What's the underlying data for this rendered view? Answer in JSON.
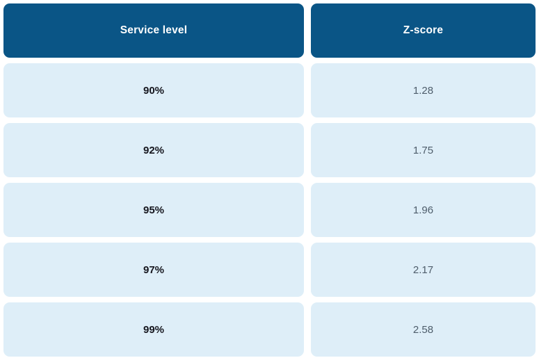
{
  "table": {
    "columns": [
      {
        "label": "Service level"
      },
      {
        "label": "Z-score"
      }
    ],
    "rows": [
      {
        "service_level": "90%",
        "z_score": "1.28"
      },
      {
        "service_level": "92%",
        "z_score": "1.75"
      },
      {
        "service_level": "95%",
        "z_score": "1.96"
      },
      {
        "service_level": "97%",
        "z_score": "2.17"
      },
      {
        "service_level": "99%",
        "z_score": "2.58"
      }
    ]
  },
  "colors": {
    "header_bg": "#0A5586",
    "header_text": "#FFFFFF",
    "cell_bg": "#DEEEF8",
    "service_level_text": "#16161E",
    "z_score_text": "#4E5D6B",
    "page_bg": "#FFFFFF"
  },
  "chart_data": {
    "type": "table",
    "title": "",
    "columns": [
      "Service level",
      "Z-score"
    ],
    "categories": [
      "90%",
      "92%",
      "95%",
      "97%",
      "99%"
    ],
    "values": [
      1.28,
      1.75,
      1.96,
      2.17,
      2.58
    ],
    "rows": [
      [
        "90%",
        1.28
      ],
      [
        "92%",
        1.75
      ],
      [
        "95%",
        1.96
      ],
      [
        "97%",
        2.17
      ],
      [
        "99%",
        2.58
      ]
    ]
  }
}
